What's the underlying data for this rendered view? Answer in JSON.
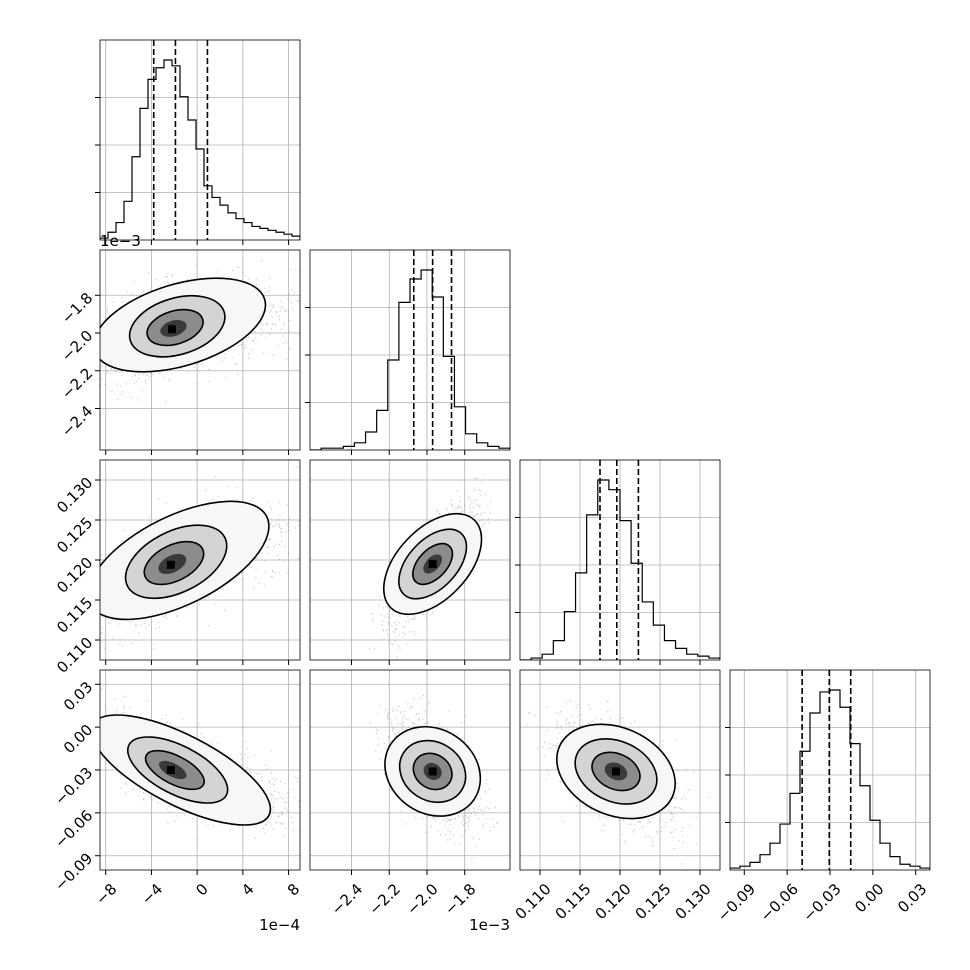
{
  "chart_data": {
    "type": "corner",
    "grid": true,
    "params": [
      {
        "range": [
          -8.5,
          9.0
        ],
        "ticks": [
          -8,
          -4,
          0,
          4,
          8
        ],
        "tick_labels": [
          "−8",
          "−4",
          "0",
          "4",
          "8"
        ],
        "offset_text": "1e−4",
        "quantiles": [
          -3.8,
          -1.9,
          0.9
        ],
        "hist": [
          0.01,
          0.04,
          0.09,
          0.2,
          0.43,
          0.68,
          0.83,
          0.89,
          0.93,
          0.9,
          0.74,
          0.62,
          0.47,
          0.28,
          0.22,
          0.18,
          0.14,
          0.11,
          0.09,
          0.07,
          0.06,
          0.05,
          0.04,
          0.03,
          0.02
        ]
      },
      {
        "range": [
          -2.62,
          -1.56
        ],
        "ticks": [
          -2.4,
          -2.2,
          -2.0,
          -1.8
        ],
        "tick_labels": [
          "−2.4",
          "−2.2",
          "−2.0",
          "−1.8"
        ],
        "offset_text": "1e−3",
        "quantiles": [
          -2.07,
          -1.97,
          -1.87
        ],
        "hist": [
          0.0,
          0.01,
          0.01,
          0.02,
          0.04,
          0.1,
          0.22,
          0.5,
          0.82,
          0.95,
          1.0,
          0.85,
          0.52,
          0.24,
          0.09,
          0.04,
          0.02,
          0.01
        ]
      },
      {
        "range": [
          0.1075,
          0.1325
        ],
        "ticks": [
          0.11,
          0.115,
          0.12,
          0.125,
          0.13
        ],
        "tick_labels": [
          "0.110",
          "0.115",
          "0.120",
          "0.125",
          "0.130"
        ],
        "offset_text": "",
        "quantiles": [
          0.1175,
          0.1196,
          0.1223
        ],
        "hist": [
          0.0,
          0.01,
          0.03,
          0.1,
          0.25,
          0.45,
          0.75,
          0.93,
          0.88,
          0.72,
          0.5,
          0.3,
          0.18,
          0.1,
          0.06,
          0.03,
          0.02,
          0.01
        ]
      },
      {
        "range": [
          -0.1,
          0.04
        ],
        "ticks": [
          -0.09,
          -0.06,
          -0.03,
          0.0,
          0.03
        ],
        "tick_labels": [
          "−0.09",
          "−0.06",
          "−0.03",
          "0.00",
          "0.03"
        ],
        "offset_text": "",
        "quantiles": [
          -0.0495,
          -0.0305,
          -0.0155
        ],
        "hist": [
          0.01,
          0.02,
          0.04,
          0.08,
          0.14,
          0.24,
          0.4,
          0.62,
          0.82,
          0.93,
          0.94,
          0.85,
          0.66,
          0.44,
          0.26,
          0.14,
          0.07,
          0.03,
          0.02,
          0.01
        ]
      }
    ],
    "pairs": [
      {
        "x": 0,
        "y": 1,
        "mean": [
          -2.2,
          -1.98
        ],
        "sd": [
          2.7,
          0.11
        ],
        "corr": 0.45,
        "skew_tail": true
      },
      {
        "x": 0,
        "y": 2,
        "mean": [
          -2.3,
          0.1194
        ],
        "sd": [
          2.8,
          0.0032
        ],
        "corr": 0.62,
        "skew_tail": true
      },
      {
        "x": 1,
        "y": 2,
        "mean": [
          -1.97,
          0.1195
        ],
        "sd": [
          0.1,
          0.0032
        ],
        "corr": 0.78,
        "skew_tail": false
      },
      {
        "x": 0,
        "y": 3,
        "mean": [
          -2.3,
          -0.03
        ],
        "sd": [
          2.8,
          0.016
        ],
        "corr": -0.72,
        "skew_tail": true
      },
      {
        "x": 1,
        "y": 3,
        "mean": [
          -1.97,
          -0.031
        ],
        "sd": [
          0.1,
          0.016
        ],
        "corr": -0.55,
        "skew_tail": false
      },
      {
        "x": 2,
        "y": 3,
        "mean": [
          0.1195,
          -0.031
        ],
        "sd": [
          0.0032,
          0.016
        ],
        "corr": -0.5,
        "skew_tail": false
      }
    ]
  }
}
